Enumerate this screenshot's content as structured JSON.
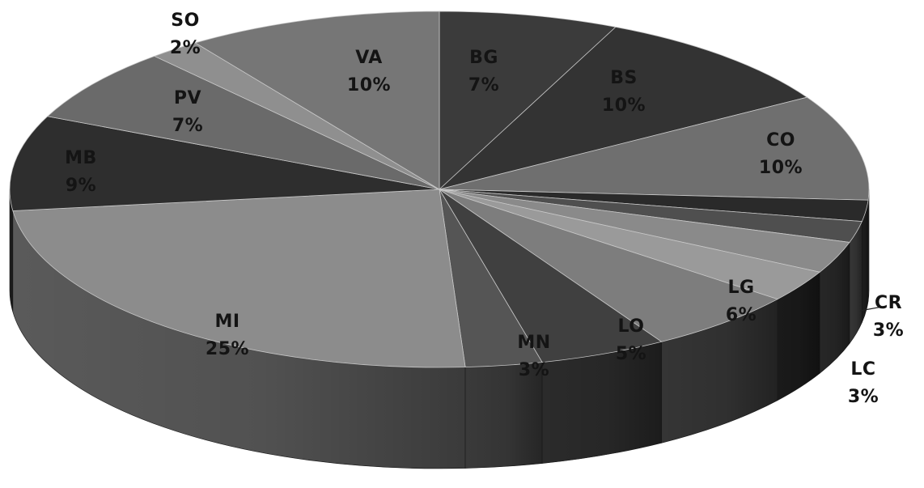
{
  "chart_data": {
    "type": "pie",
    "style": "3d",
    "start_angle_deg": -90,
    "direction": "clockwise",
    "grid": false,
    "legend": "none",
    "labels_visible": [
      "BG",
      "BS",
      "CO",
      "",
      "",
      "CR",
      "LC",
      "LG",
      "LO",
      "MN",
      "MI",
      "MB",
      "PV",
      "SO",
      "VA"
    ],
    "labels": [
      "BG",
      "BS",
      "CO",
      "",
      "",
      "CR",
      "LC",
      "LG",
      "LO",
      "MN",
      "MI",
      "MB",
      "PV",
      "SO",
      "VA"
    ],
    "categories": [
      "BG",
      "BS",
      "CO",
      "",
      "",
      "CR",
      "LC",
      "LG",
      "LO",
      "MN",
      "MI",
      "MB",
      "PV",
      "SO",
      "VA"
    ],
    "values": [
      7,
      10,
      10,
      2,
      2,
      3,
      3,
      6,
      5,
      3,
      25,
      9,
      7,
      2,
      10
    ],
    "value_labels": [
      "7%",
      "10%",
      "10%",
      "",
      "",
      "3%",
      "3%",
      "6%",
      "5%",
      "3%",
      "25%",
      "9%",
      "7%",
      "2%",
      "10%"
    ],
    "colors": [
      "#3b3b3b",
      "#333333",
      "#6f6f6f",
      "#2a2a2a",
      "#4f4f4f",
      "#8a8a8a",
      "#9a9a9a",
      "#7d7d7d",
      "#404040",
      "#555555",
      "#8c8c8c",
      "#2e2e2e",
      "#6a6a6a",
      "#8f8f8f",
      "#767676"
    ],
    "side_colors": [
      "#2a2a2a",
      "#242424",
      "#4b4b4b",
      "#1d1d1d",
      "#363636",
      "#272727",
      "#1a1a1a",
      "#353535",
      "#2b2b2b",
      "#3a3a3a",
      "#5a5a5a",
      "#1f1f1f",
      "#474747",
      "#616161",
      "#505050"
    ],
    "label_colors": [
      "#141414",
      "#141414",
      "#141414",
      "",
      "",
      "#141414",
      "#141414",
      "#141414",
      "#141414",
      "#141414",
      "#141414",
      "#141414",
      "#141414",
      "#141414",
      "#141414"
    ]
  }
}
